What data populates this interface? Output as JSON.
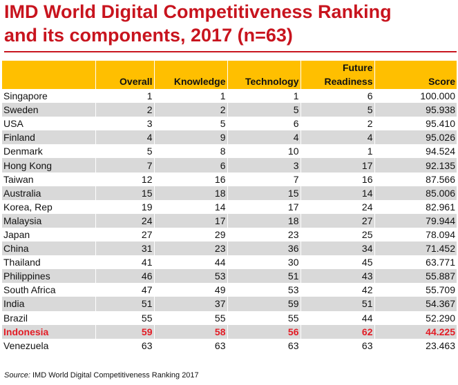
{
  "title": {
    "line1": "IMD World Digital Competitiveness Ranking",
    "line2": "and its components, 2017 (n=63)"
  },
  "table": {
    "headers": [
      "",
      "Overall",
      "Knowledge",
      "Technology",
      "Future\nReadiness",
      "Score"
    ],
    "rows": [
      [
        "Singapore",
        "1",
        "1",
        "1",
        "6",
        "100.000"
      ],
      [
        "Sweden",
        "2",
        "2",
        "5",
        "5",
        "95.938"
      ],
      [
        "USA",
        "3",
        "5",
        "6",
        "2",
        "95.410"
      ],
      [
        "Finland",
        "4",
        "9",
        "4",
        "4",
        "95.026"
      ],
      [
        "Denmark",
        "5",
        "8",
        "10",
        "1",
        "94.524"
      ],
      [
        "Hong Kong",
        "7",
        "6",
        "3",
        "17",
        "92.135"
      ],
      [
        "Taiwan",
        "12",
        "16",
        "7",
        "16",
        "87.566"
      ],
      [
        "Australia",
        "15",
        "18",
        "15",
        "14",
        "85.006"
      ],
      [
        "Korea, Rep",
        "19",
        "14",
        "17",
        "24",
        "82.961"
      ],
      [
        "Malaysia",
        "24",
        "17",
        "18",
        "27",
        "79.944"
      ],
      [
        "Japan",
        "27",
        "29",
        "23",
        "25",
        "78.094"
      ],
      [
        "China",
        "31",
        "23",
        "36",
        "34",
        "71.452"
      ],
      [
        "Thailand",
        "41",
        "44",
        "30",
        "45",
        "63.771"
      ],
      [
        "Philippines",
        "46",
        "53",
        "51",
        "43",
        "55.887"
      ],
      [
        "South Africa",
        "47",
        "49",
        "53",
        "42",
        "55.709"
      ],
      [
        "India",
        "51",
        "37",
        "59",
        "51",
        "54.367"
      ],
      [
        "Brazil",
        "55",
        "55",
        "55",
        "44",
        "52.290"
      ],
      [
        "Indonesia",
        "59",
        "58",
        "56",
        "62",
        "44.225"
      ],
      [
        "Venezuela",
        "63",
        "63",
        "63",
        "63",
        "23.463"
      ]
    ],
    "highlight_row": "Indonesia"
  },
  "source": {
    "label": "Source:",
    "text": "IMD World Digital Competitiveness Ranking 2017"
  },
  "colors": {
    "title": "#c8141e",
    "header_bg": "#ffbf00",
    "stripe_bg": "#d9d9d9",
    "highlight_text": "#e31c25"
  }
}
